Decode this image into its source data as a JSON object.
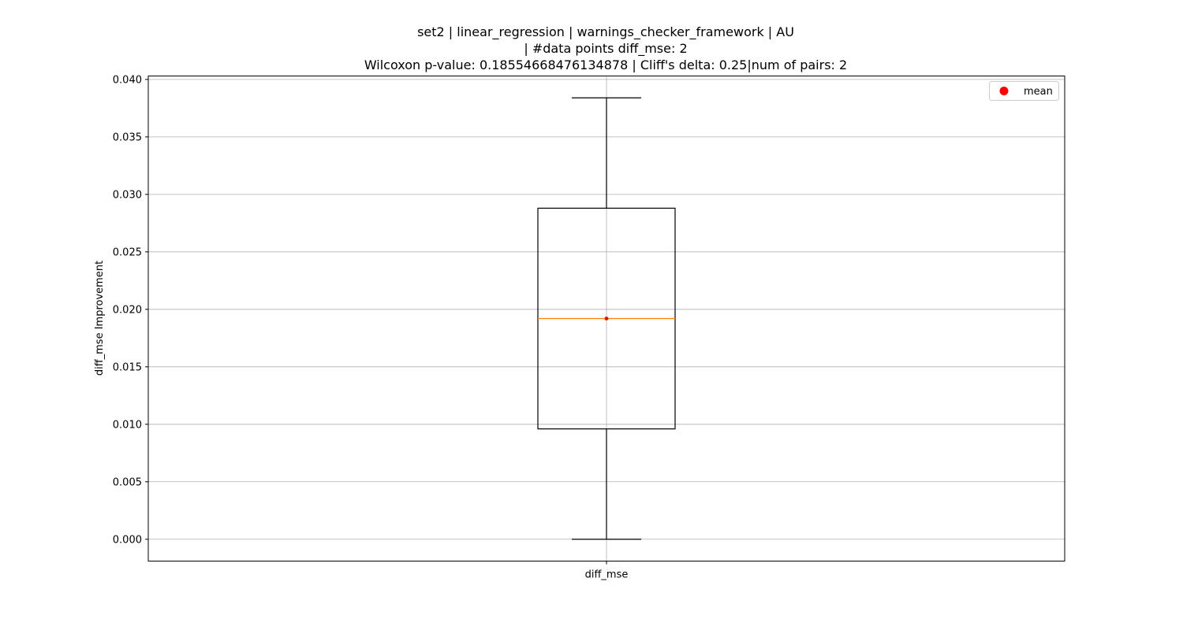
{
  "chart_data": {
    "type": "box",
    "title_lines": [
      "set2 | linear_regression | warnings_checker_framework | AU",
      "| #data points diff_mse: 2",
      "Wilcoxon p-value: 0.18554668476134878 | Cliff's delta: 0.25|num of pairs: 2"
    ],
    "xlabel": "",
    "ylabel": "diff_mse Improvement",
    "categories": [
      "diff_mse"
    ],
    "ylim": [
      -0.0019,
      0.0403
    ],
    "yticks": [
      0.0,
      0.005,
      0.01,
      0.015,
      0.02,
      0.025,
      0.03,
      0.035,
      0.04
    ],
    "ytick_labels": [
      "0.000",
      "0.005",
      "0.010",
      "0.015",
      "0.020",
      "0.025",
      "0.030",
      "0.035",
      "0.040"
    ],
    "grid": true,
    "legend": {
      "entries": [
        "mean"
      ],
      "placement": "top-right"
    },
    "boxes": [
      {
        "name": "diff_mse",
        "whisker_low": 0.0,
        "q1": 0.0096,
        "median": 0.0192,
        "q3": 0.0288,
        "whisker_high": 0.0384,
        "mean": 0.0192
      }
    ],
    "colors": {
      "box": "#000000",
      "median": "#ff7f0e",
      "mean": "#ff0000",
      "grid": "#b0b0b0"
    }
  }
}
